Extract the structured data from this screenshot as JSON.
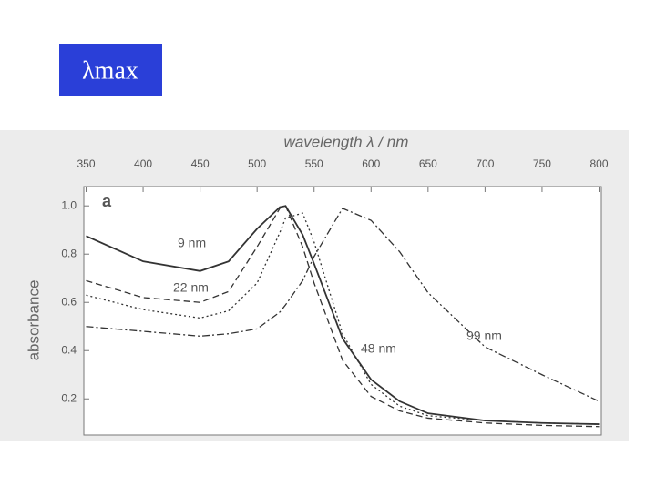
{
  "header": {
    "title": "λmax"
  },
  "chart_data": {
    "type": "line",
    "panel_label": "a",
    "x_label": "wavelength λ / nm",
    "y_label": "absorbance",
    "x": [
      350,
      400,
      450,
      475,
      500,
      520,
      525,
      540,
      550,
      575,
      600,
      625,
      650,
      700,
      750,
      800
    ],
    "series": [
      {
        "name": "9 nm",
        "color": "#333333",
        "values": [
          0.875,
          0.77,
          0.73,
          0.77,
          0.905,
          0.995,
          1.0,
          0.88,
          0.76,
          0.45,
          0.28,
          0.19,
          0.14,
          0.11,
          0.1,
          0.095
        ]
      },
      {
        "name": "22 nm",
        "color": "#333333",
        "values": [
          0.69,
          0.62,
          0.6,
          0.645,
          0.83,
          0.99,
          1.0,
          0.83,
          0.68,
          0.36,
          0.21,
          0.15,
          0.12,
          0.1,
          0.09,
          0.085
        ]
      },
      {
        "name": "48 nm",
        "color": "#333333",
        "values": [
          0.63,
          0.57,
          0.535,
          0.565,
          0.68,
          0.89,
          0.95,
          0.97,
          0.85,
          0.47,
          0.26,
          0.17,
          0.13,
          0.11,
          0.1,
          0.095
        ]
      },
      {
        "name": "99 nm",
        "color": "#333333",
        "values": [
          0.5,
          0.48,
          0.46,
          0.47,
          0.49,
          0.56,
          0.59,
          0.69,
          0.79,
          0.99,
          0.94,
          0.81,
          0.64,
          0.415,
          0.3,
          0.19
        ]
      }
    ],
    "xlim": [
      348,
      802
    ],
    "xticks": [
      350,
      400,
      450,
      500,
      550,
      600,
      650,
      700,
      750,
      800
    ],
    "ylim": [
      0.05,
      1.08
    ],
    "yticks": [
      0.2,
      0.4,
      0.6,
      0.8,
      {
        "value": 1,
        "label": "1.0"
      }
    ]
  }
}
